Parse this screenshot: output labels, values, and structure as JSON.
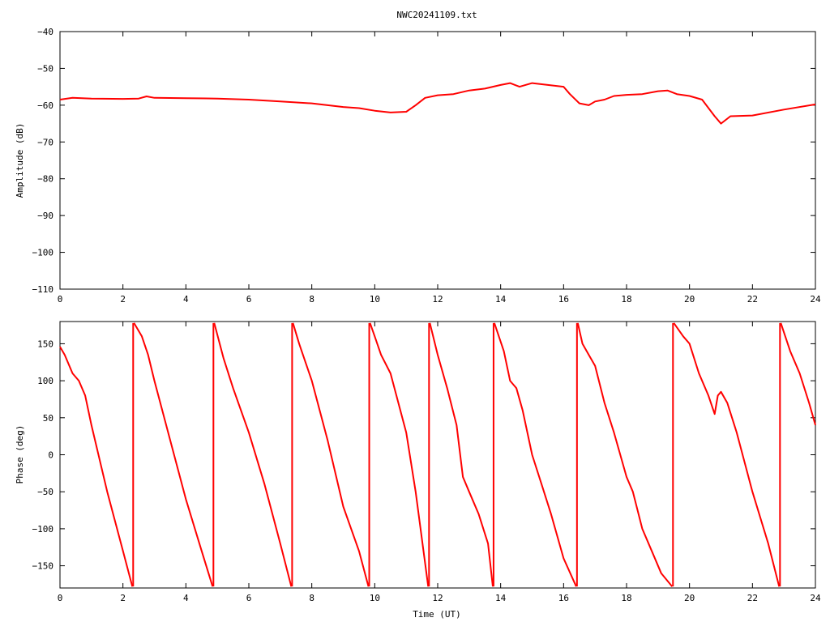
{
  "chart_data": [
    {
      "type": "line",
      "title": "NWC20241109.txt",
      "xlabel": "",
      "ylabel": "Amplitude (dB)",
      "xlim": [
        0,
        24
      ],
      "ylim": [
        -110,
        -40
      ],
      "x_ticks": [
        0,
        2,
        4,
        6,
        8,
        10,
        12,
        14,
        16,
        18,
        20,
        22,
        24
      ],
      "y_ticks": [
        -110,
        -100,
        -90,
        -80,
        -70,
        -60,
        -50,
        -40
      ],
      "grid": false,
      "line_color": "#ff0000",
      "x": [
        0,
        0.4,
        1,
        2,
        2.5,
        2.75,
        3,
        4,
        5,
        6,
        7,
        8,
        9,
        9.5,
        10,
        10.5,
        11,
        11.3,
        11.6,
        12,
        12.5,
        13,
        13.5,
        14,
        14.3,
        14.6,
        15,
        15.5,
        16,
        16.2,
        16.5,
        16.8,
        17,
        17.3,
        17.6,
        18,
        18.5,
        19,
        19.3,
        19.6,
        20,
        20.4,
        20.8,
        21.0,
        21.3,
        22,
        23,
        24
      ],
      "y": [
        -58.5,
        -58,
        -58.2,
        -58.3,
        -58.2,
        -57.6,
        -58,
        -58.1,
        -58.2,
        -58.5,
        -59,
        -59.5,
        -60.5,
        -60.8,
        -61.5,
        -62,
        -61.8,
        -60,
        -58,
        -57.3,
        -57,
        -56,
        -55.5,
        -54.5,
        -54,
        -55,
        -54,
        -54.5,
        -55,
        -57,
        -59.5,
        -60,
        -59,
        -58.5,
        -57.5,
        -57.2,
        -57,
        -56.2,
        -56,
        -57,
        -57.5,
        -58.5,
        -63,
        -65,
        -63,
        -62.8,
        -61.2,
        -59.8
      ]
    },
    {
      "type": "line",
      "title": "",
      "xlabel": "Time (UT)",
      "ylabel": "Phase (deg)",
      "xlim": [
        0,
        24
      ],
      "ylim": [
        -180,
        180
      ],
      "x_ticks": [
        0,
        2,
        4,
        6,
        8,
        10,
        12,
        14,
        16,
        18,
        20,
        22,
        24
      ],
      "y_ticks": [
        -150,
        -100,
        -50,
        0,
        50,
        100,
        150
      ],
      "grid": false,
      "line_color": "#ff0000",
      "segments": [
        {
          "x": [
            0,
            0.15,
            0.4,
            0.6,
            0.8,
            1.0,
            1.5,
            2.0,
            2.3
          ],
          "y": [
            146,
            135,
            110,
            100,
            80,
            40,
            -50,
            -130,
            -178
          ]
        },
        {
          "x": [
            2.35,
            2.6,
            2.8,
            3.0,
            3.5,
            4.0,
            4.5,
            4.85
          ],
          "y": [
            178,
            160,
            135,
            100,
            20,
            -60,
            -130,
            -178
          ]
        },
        {
          "x": [
            4.9,
            5.2,
            5.5,
            6.0,
            6.5,
            7.0,
            7.35
          ],
          "y": [
            178,
            130,
            90,
            30,
            -40,
            -120,
            -178
          ]
        },
        {
          "x": [
            7.4,
            7.6,
            7.8,
            8.0,
            8.5,
            9.0,
            9.5,
            9.8
          ],
          "y": [
            178,
            150,
            125,
            100,
            20,
            -70,
            -130,
            -178
          ]
        },
        {
          "x": [
            9.85,
            10.0,
            10.2,
            10.5,
            11.0,
            11.3,
            11.7
          ],
          "y": [
            178,
            160,
            135,
            110,
            30,
            -50,
            -178
          ]
        },
        {
          "x": [
            11.75,
            12.0,
            12.3,
            12.6,
            12.8,
            13.0,
            13.3,
            13.6,
            13.75
          ],
          "y": [
            178,
            135,
            90,
            40,
            -30,
            -50,
            -80,
            -120,
            -178
          ]
        },
        {
          "x": [
            13.8,
            14.1,
            14.3,
            14.5,
            14.7,
            15.0,
            15.3,
            15.6,
            16.0,
            16.4
          ],
          "y": [
            178,
            140,
            100,
            90,
            60,
            0,
            -40,
            -80,
            -140,
            -178
          ]
        },
        {
          "x": [
            16.45,
            16.6,
            16.8,
            17.0,
            17.3,
            17.6,
            18.0,
            18.2,
            18.5,
            18.8,
            19.1,
            19.45
          ],
          "y": [
            178,
            150,
            135,
            120,
            70,
            30,
            -30,
            -50,
            -100,
            -130,
            -160,
            -178
          ]
        },
        {
          "x": [
            19.5,
            19.8,
            20.0,
            20.3,
            20.6,
            20.8,
            20.9,
            21.0,
            21.2,
            21.5,
            22.0,
            22.5,
            22.85
          ],
          "y": [
            178,
            160,
            150,
            110,
            80,
            55,
            80,
            85,
            70,
            30,
            -50,
            -120,
            -178
          ]
        },
        {
          "x": [
            22.9,
            23.2,
            23.5,
            23.8,
            24
          ],
          "y": [
            178,
            140,
            110,
            70,
            40
          ]
        }
      ]
    }
  ]
}
